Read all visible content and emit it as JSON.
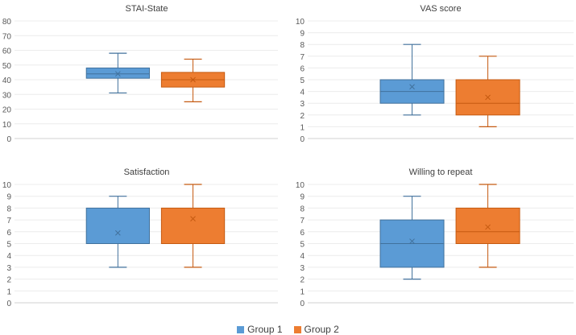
{
  "legend": {
    "group1_label": "Group 1",
    "group2_label": "Group 2",
    "group1_color": "#5b9bd5",
    "group2_color": "#ed7d31"
  },
  "chart_data": [
    {
      "type": "boxplot",
      "title": "STAI-State",
      "ylim": [
        0,
        80
      ],
      "yticks": [
        0,
        10,
        20,
        30,
        40,
        50,
        60,
        70,
        80
      ],
      "grid": true,
      "legend_position": "bottom",
      "series": [
        {
          "name": "Group 1",
          "min": 31,
          "q1": 41,
          "median": 44,
          "q3": 48,
          "max": 58,
          "mean": 44
        },
        {
          "name": "Group 2",
          "min": 25,
          "q1": 35,
          "median": 40,
          "q3": 45,
          "max": 54,
          "mean": 40
        }
      ]
    },
    {
      "type": "boxplot",
      "title": "VAS score",
      "ylim": [
        0,
        10
      ],
      "yticks": [
        0,
        1,
        2,
        3,
        4,
        5,
        6,
        7,
        8,
        9,
        10
      ],
      "grid": true,
      "legend_position": "bottom",
      "series": [
        {
          "name": "Group 1",
          "min": 2,
          "q1": 3,
          "median": 4,
          "q3": 5,
          "max": 8,
          "mean": 4.4
        },
        {
          "name": "Group 2",
          "min": 1,
          "q1": 2,
          "median": 3,
          "q3": 5,
          "max": 7,
          "mean": 3.5
        }
      ]
    },
    {
      "type": "boxplot",
      "title": "Satisfaction",
      "ylim": [
        0,
        10
      ],
      "yticks": [
        0,
        1,
        2,
        3,
        4,
        5,
        6,
        7,
        8,
        9,
        10
      ],
      "grid": true,
      "legend_position": "bottom",
      "series": [
        {
          "name": "Group 1",
          "min": 3,
          "q1": 5,
          "median": 5,
          "q3": 8,
          "max": 9,
          "mean": 5.9
        },
        {
          "name": "Group 2",
          "min": 3,
          "q1": 5,
          "median": 5,
          "q3": 8,
          "max": 10,
          "mean": 7.1
        }
      ]
    },
    {
      "type": "boxplot",
      "title": "Willing to repeat",
      "ylim": [
        0,
        10
      ],
      "yticks": [
        0,
        1,
        2,
        3,
        4,
        5,
        6,
        7,
        8,
        9,
        10
      ],
      "grid": true,
      "legend_position": "bottom",
      "series": [
        {
          "name": "Group 1",
          "min": 2,
          "q1": 3,
          "median": 5,
          "q3": 7,
          "max": 9,
          "mean": 5.2
        },
        {
          "name": "Group 2",
          "min": 3,
          "q1": 5,
          "median": 6,
          "q3": 8,
          "max": 10,
          "mean": 6.4
        }
      ]
    }
  ]
}
